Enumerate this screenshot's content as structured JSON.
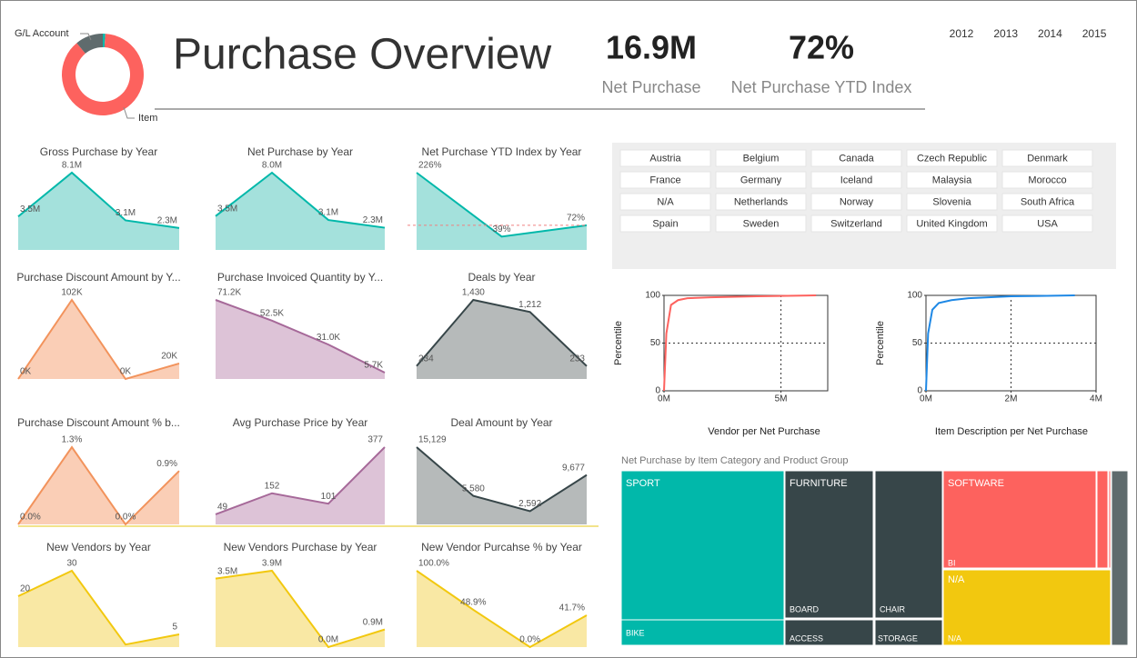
{
  "title": "Purchase Overview",
  "kpis": [
    {
      "value": "16.9M",
      "label": "Net Purchase"
    },
    {
      "value": "72%",
      "label": "Net Purchase YTD Index"
    }
  ],
  "years": [
    "2012",
    "2013",
    "2014",
    "2015"
  ],
  "donut": {
    "type": "pie",
    "labels": [
      null,
      "Item",
      "G/L Account"
    ],
    "values": [
      1,
      88,
      11
    ],
    "colors": [
      "#01B8AA",
      "#FD625E",
      "#5F6B6D"
    ]
  },
  "countries": [
    "Austria",
    "Belgium",
    "Canada",
    "Czech Republic",
    "Denmark",
    "France",
    "Germany",
    "Iceland",
    "Malaysia",
    "Morocco",
    "N/A",
    "Netherlands",
    "Norway",
    "Slovenia",
    "South Africa",
    "Spain",
    "Sweden",
    "Switzerland",
    "United Kingdom",
    "USA"
  ],
  "chart_data": [
    {
      "type": "area",
      "title": "Gross Purchase by Year",
      "values": [
        3.5,
        8.1,
        3.1,
        2.3
      ],
      "value_labels": [
        "3.5M",
        "8.1M",
        "3.1M",
        "2.3M"
      ],
      "color": "#01B8AA"
    },
    {
      "type": "area",
      "title": "Net Purchase by Year",
      "values": [
        3.5,
        8.0,
        3.1,
        2.3
      ],
      "value_labels": [
        "3.5M",
        "8.0M",
        "3.1M",
        "2.3M"
      ],
      "color": "#01B8AA"
    },
    {
      "type": "area",
      "title": "Net Purchase YTD Index by Year",
      "values": [
        226,
        39,
        72
      ],
      "value_labels": [
        "226%",
        "39%",
        "72%"
      ],
      "color": "#01B8AA",
      "reference_line": 72
    },
    {
      "type": "area",
      "title": "Purchase Discount Amount by Y...",
      "values": [
        0,
        102,
        0,
        20
      ],
      "value_labels": [
        "0K",
        "102K",
        "0K",
        "20K"
      ],
      "color": "#F2935C"
    },
    {
      "type": "area",
      "title": "Purchase Invoiced Quantity by Y...",
      "values": [
        71.2,
        52.5,
        31.0,
        5.7
      ],
      "value_labels": [
        "71.2K",
        "52.5K",
        "31.0K",
        "5.7K"
      ],
      "color": "#A66999"
    },
    {
      "type": "area",
      "title": "Deals by Year",
      "values": [
        234,
        1430,
        1212,
        233
      ],
      "value_labels": [
        "234",
        "1,430",
        "1,212",
        "233"
      ],
      "color": "#374649"
    },
    {
      "type": "area",
      "title": "Purchase Discount Amount % b...",
      "values": [
        0.0,
        1.3,
        0.0,
        0.9
      ],
      "value_labels": [
        "0.0%",
        "1.3%",
        "0.0%",
        "0.9%"
      ],
      "color": "#F2935C"
    },
    {
      "type": "area",
      "title": "Avg Purchase Price by Year",
      "values": [
        49,
        152,
        101,
        377
      ],
      "color": "#A66999"
    },
    {
      "type": "area",
      "title": "Deal Amount by Year",
      "values": [
        15129,
        5580,
        2592,
        9677
      ],
      "value_labels": [
        "15,129",
        "5,580",
        "2,592",
        "9,677"
      ],
      "color": "#374649"
    },
    {
      "type": "area",
      "title": "New Vendors by Year",
      "values": [
        20,
        30,
        1,
        5
      ],
      "value_labels": [
        "20",
        "30",
        null,
        "5"
      ],
      "color": "#F2C80F"
    },
    {
      "type": "area",
      "title": "New Vendors Purchase by Year",
      "values": [
        3.5,
        3.9,
        0.0,
        0.9
      ],
      "value_labels": [
        "3.5M",
        "3.9M",
        "0.0M",
        "0.9M"
      ],
      "color": "#F2C80F"
    },
    {
      "type": "area",
      "title": "New Vendor Purcahse % by Year",
      "values": [
        100.0,
        48.9,
        0.0,
        41.7
      ],
      "value_labels": [
        "100.0%",
        "48.9%",
        "0.0%",
        "41.7%"
      ],
      "color": "#F2C80F"
    }
  ],
  "percentile_charts": [
    {
      "type": "line",
      "x_label": "Vendor per Net Purchase",
      "y_label": "Percentile",
      "color": "#FD625E",
      "x": [
        0,
        0.1,
        0.3,
        0.6,
        1,
        2,
        4,
        6.5
      ],
      "values": [
        0,
        60,
        90,
        95,
        97,
        98,
        99,
        100
      ],
      "xlim": [
        0,
        7
      ],
      "xticks": [
        {
          "value": 0,
          "label": "0M"
        },
        {
          "value": 5,
          "label": "5M"
        }
      ],
      "ylim": [
        0,
        100
      ],
      "yticks": [
        0,
        50,
        100
      ]
    },
    {
      "type": "line",
      "x_label": "Item Description per Net Purchase",
      "y_label": "Percentile",
      "color": "#1E88E5",
      "x": [
        0,
        0.05,
        0.15,
        0.3,
        0.6,
        1,
        2,
        3.5
      ],
      "values": [
        0,
        60,
        85,
        92,
        95,
        97,
        99,
        100
      ],
      "xlim": [
        0,
        4
      ],
      "xticks": [
        {
          "value": 0,
          "label": "0M"
        },
        {
          "value": 2,
          "label": "2M"
        },
        {
          "value": 4,
          "label": "4M"
        }
      ],
      "ylim": [
        0,
        100
      ],
      "yticks": [
        0,
        50,
        100
      ]
    }
  ],
  "treemap": {
    "title": "Net Purchase by Item Category and Product Group",
    "labels": [
      "SPORT",
      "BIKE",
      "FURNITURE",
      "BOARD",
      "CHAIR",
      "ACCESS",
      "STORAGE",
      "SOFTWARE",
      "BI",
      "N/A",
      "N/A"
    ]
  }
}
